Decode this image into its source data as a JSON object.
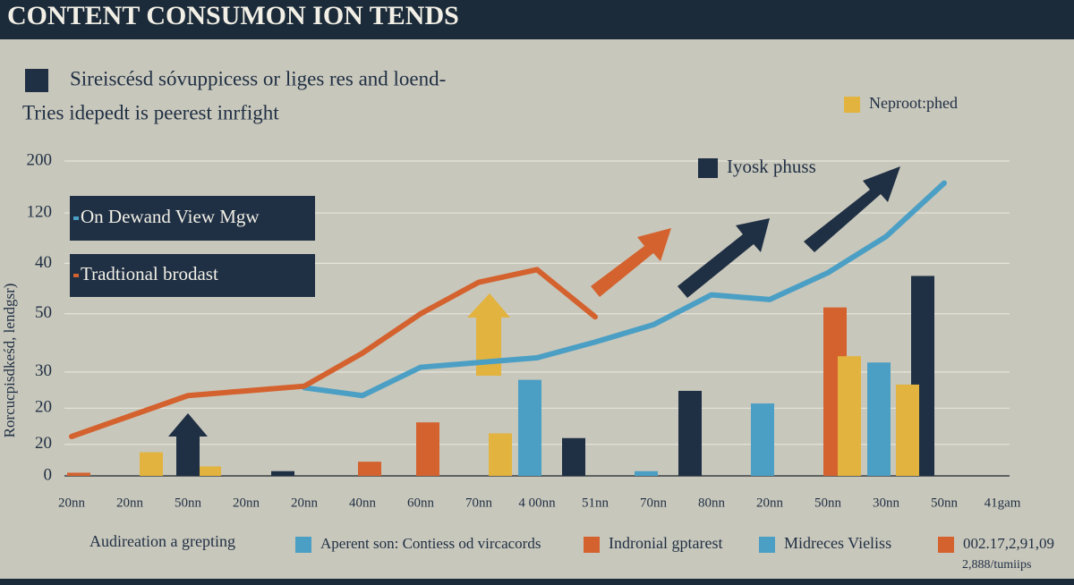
{
  "chart_data": {
    "type": "bar",
    "title": "CONTENT CONSUMON ION TENDS",
    "subtitle": [
      "Sireiscésd sóvuppicess or liges res and loend-",
      "Tries idepedt is peerest inrfight"
    ],
    "ylabel": "Rorcucpisdkeśd, lendgsr)",
    "xlabel": "Audireation a grepting",
    "categories": [
      "20nn",
      "20nn",
      "50nn",
      "20nn",
      "20nn",
      "40nn",
      "60nn",
      "70nn",
      "4 00nn",
      "51nn",
      "70nn",
      "80nn",
      "20nn",
      "50nn",
      "30nn",
      "50nn",
      "41gam"
    ],
    "ylim": [
      0,
      200
    ],
    "yticks": [
      0,
      20,
      {
        "value": 43,
        "label": "20"
      },
      {
        "value": 66,
        "label": "30"
      },
      {
        "value": 103,
        "label": "50"
      },
      {
        "value": 135,
        "label": "40"
      },
      {
        "value": 167,
        "label": "120"
      },
      200
    ],
    "grid": true,
    "series": [
      {
        "name": "On Dewand View Mgw",
        "type": "line",
        "color": "#4b9fc4",
        "values": [
          null,
          null,
          null,
          null,
          56,
          51,
          69,
          72,
          75,
          85,
          96,
          115,
          112,
          129,
          152,
          186,
          null
        ]
      },
      {
        "name": "Tradtional brodast",
        "type": "line",
        "color": "#d4622e",
        "values": [
          25,
          38,
          51,
          54,
          57,
          78,
          103,
          123,
          131,
          101,
          null,
          null,
          null,
          null,
          null,
          null,
          null
        ]
      },
      {
        "name": "Iyosk phuss",
        "type": "bar",
        "color": "#1f2f44",
        "values": [
          null,
          null,
          null,
          null,
          3,
          null,
          null,
          null,
          null,
          24,
          null,
          54,
          null,
          null,
          null,
          127,
          null
        ]
      },
      {
        "name": "Midreces Vieliss",
        "type": "bar",
        "color": "#4b9fc4",
        "values": [
          null,
          null,
          null,
          null,
          null,
          null,
          null,
          null,
          61,
          null,
          3,
          null,
          46,
          null,
          72,
          null,
          null
        ]
      },
      {
        "name": "Indronial gptarest",
        "type": "bar",
        "color": "#d4622e",
        "values": [
          2,
          null,
          null,
          null,
          null,
          9,
          34,
          null,
          null,
          null,
          null,
          null,
          null,
          107,
          null,
          null,
          null
        ]
      },
      {
        "name": "Neproot:phed",
        "type": "bar",
        "color": "#e2b33e",
        "values": [
          null,
          15,
          6,
          null,
          null,
          null,
          null,
          27,
          null,
          null,
          null,
          null,
          null,
          76,
          58,
          null,
          null
        ]
      }
    ],
    "notes": [
      {
        "label": "Aperent son: Contiess od vircacords",
        "color": "#4b9fc4"
      },
      {
        "label": "002.17,2,91,09",
        "color": "#d4622e"
      }
    ],
    "footnote": "2,888/tumiips"
  }
}
